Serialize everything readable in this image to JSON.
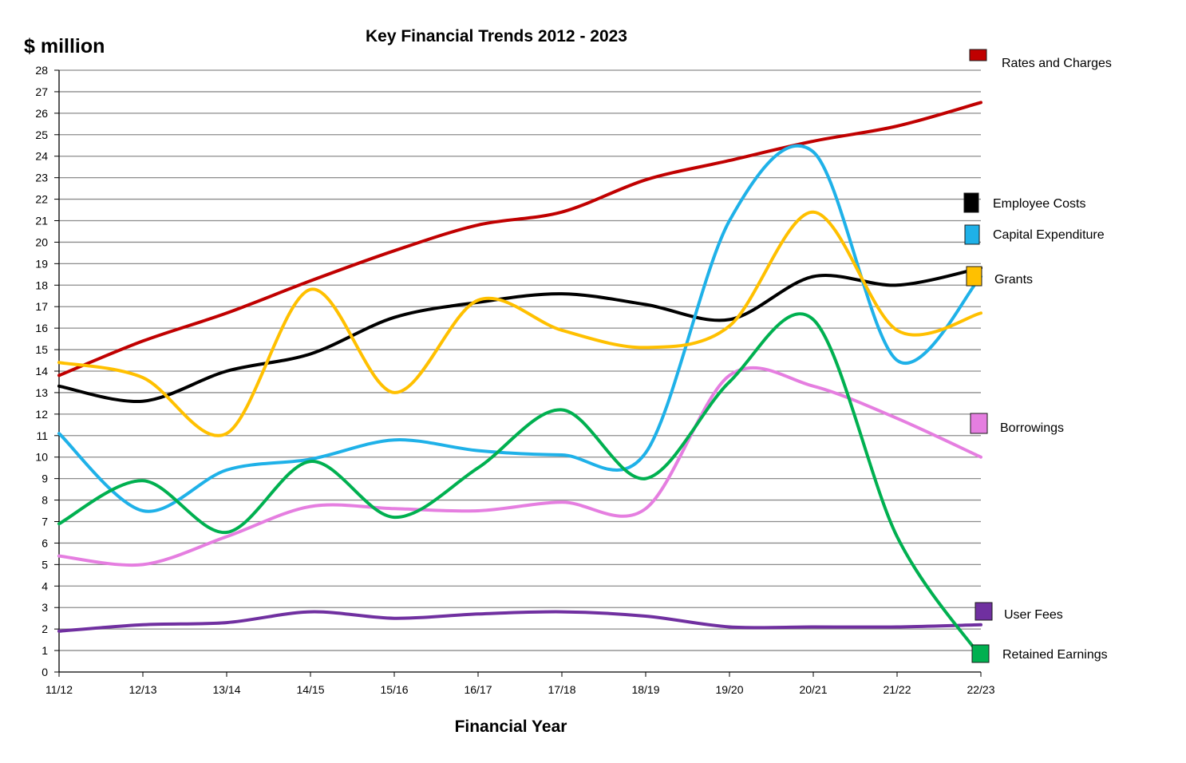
{
  "chart_data": {
    "type": "line",
    "title": "Key Financial  Trends 2012 - 2023",
    "ylabel": "$ million",
    "xlabel": "Financial  Year",
    "categories": [
      "11/12",
      "12/13",
      "13/14",
      "14/15",
      "15/16",
      "16/17",
      "17/18",
      "18/19",
      "19/20",
      "20/21",
      "21/22",
      "22/23"
    ],
    "ylim": [
      0,
      28
    ],
    "yticks": [
      0,
      1,
      2,
      3,
      4,
      5,
      6,
      7,
      8,
      9,
      10,
      11,
      12,
      13,
      14,
      15,
      16,
      17,
      18,
      19,
      20,
      21,
      22,
      23,
      24,
      25,
      26,
      27,
      28
    ],
    "grid": true,
    "legend_placement": "right",
    "series": [
      {
        "name": "Rates and Charges",
        "color": "#c00000",
        "values": [
          13.8,
          15.4,
          16.7,
          18.2,
          19.6,
          20.8,
          21.4,
          22.9,
          23.8,
          24.7,
          25.4,
          26.5
        ]
      },
      {
        "name": "Employee Costs",
        "color": "#000000",
        "values": [
          13.3,
          12.6,
          14.0,
          14.8,
          16.5,
          17.2,
          17.6,
          17.1,
          16.4,
          18.4,
          18.0,
          18.8
        ]
      },
      {
        "name": "Capital Expenditure",
        "color": "#1fb1e8",
        "values": [
          11.1,
          7.5,
          9.4,
          9.9,
          10.8,
          10.3,
          10.1,
          10.2,
          21.0,
          24.2,
          14.5,
          18.4
        ]
      },
      {
        "name": "Grants",
        "color": "#ffc000",
        "values": [
          14.4,
          13.7,
          11.1,
          17.8,
          13.0,
          17.3,
          15.9,
          15.1,
          16.1,
          21.4,
          15.9,
          16.7
        ]
      },
      {
        "name": "Borrowings",
        "color": "#e57ee0",
        "values": [
          5.4,
          5.0,
          6.3,
          7.7,
          7.6,
          7.5,
          7.9,
          7.6,
          13.8,
          13.3,
          11.8,
          10.0
        ]
      },
      {
        "name": "User Fees",
        "color": "#7030a0",
        "values": [
          1.9,
          2.2,
          2.3,
          2.8,
          2.5,
          2.7,
          2.8,
          2.6,
          2.1,
          2.1,
          2.1,
          2.2
        ]
      },
      {
        "name": "Retained Earnings",
        "color": "#00b050",
        "values": [
          6.9,
          8.9,
          6.5,
          9.8,
          7.2,
          9.5,
          12.2,
          9.0,
          13.5,
          16.4,
          6.3,
          0.7
        ]
      }
    ],
    "legend": [
      {
        "name": "Rates and Charges",
        "color": "#c00000"
      },
      {
        "name": "Employee Costs",
        "color": "#000000"
      },
      {
        "name": "Capital Expenditure",
        "color": "#1fb1e8"
      },
      {
        "name": "Grants",
        "color": "#ffc000"
      },
      {
        "name": "Borrowings",
        "color": "#e57ee0"
      },
      {
        "name": "User Fees",
        "color": "#7030a0"
      },
      {
        "name": "Retained Earnings",
        "color": "#00b050"
      }
    ]
  }
}
